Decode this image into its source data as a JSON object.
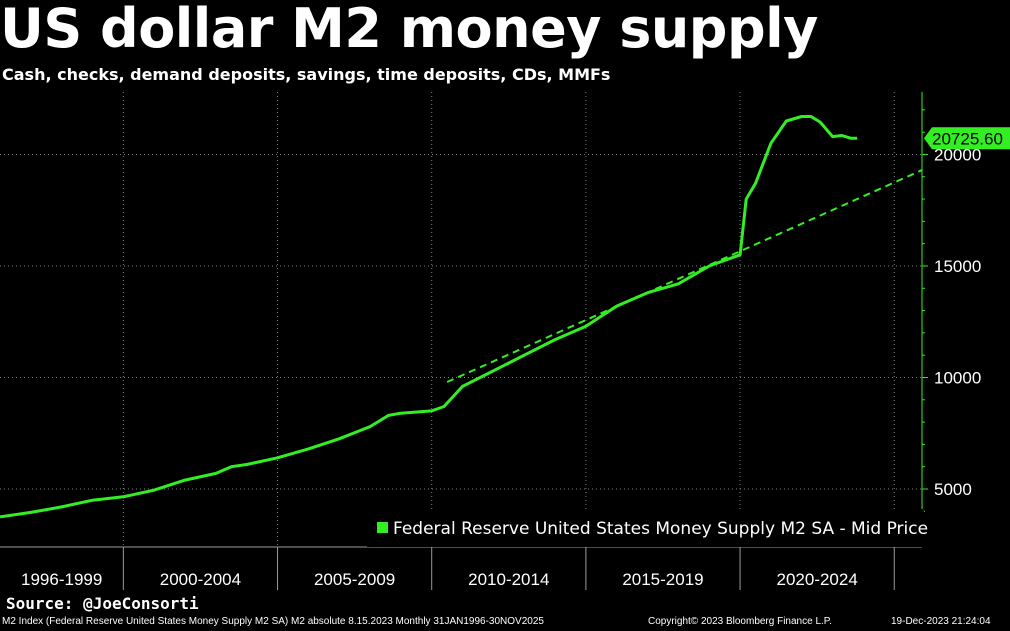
{
  "header": {
    "title": "US dollar M2 money supply",
    "subtitle": "Cash, checks, demand deposits, savings, time deposits, CDs, MMFs"
  },
  "chart_data": {
    "type": "line",
    "title": "US dollar M2 money supply",
    "subtitle": "Cash, checks, demand deposits, savings, time deposits, CDs, MMFs",
    "xlabel": "",
    "ylabel": "",
    "x_range": [
      1996.0,
      2025.9
    ],
    "ylim": [
      2400,
      22800
    ],
    "y_ticks": [
      5000,
      10000,
      15000,
      20000
    ],
    "y_tick_labels": [
      "5000",
      "10000",
      "15000",
      "20000"
    ],
    "x_period_labels": [
      "1996-1999",
      "2000-2004",
      "2005-2009",
      "2010-2014",
      "2015-2019",
      "2020-2024"
    ],
    "x_period_bounds": [
      1996.0,
      2000.0,
      2005.0,
      2010.0,
      2015.0,
      2020.0,
      2025.0
    ],
    "grid": true,
    "legend_position": "bottom-right",
    "last_value_label": "20725.60",
    "colors": {
      "line": "#33ee22",
      "background": "#000000",
      "grid": "#808080",
      "axis": "#33ee22"
    },
    "series": [
      {
        "name": "Federal Reserve United States Money Supply M2 SA - Mid Price",
        "style": "solid",
        "x": [
          1996.0,
          1997.0,
          1998.0,
          1999.0,
          2000.0,
          2001.0,
          2002.0,
          2003.0,
          2003.5,
          2004.0,
          2005.0,
          2006.0,
          2007.0,
          2008.0,
          2008.6,
          2009.0,
          2010.0,
          2010.4,
          2011.0,
          2012.0,
          2013.0,
          2014.0,
          2015.0,
          2016.0,
          2017.0,
          2018.0,
          2019.0,
          2020.0,
          2020.2,
          2020.5,
          2021.0,
          2021.5,
          2022.0,
          2022.3,
          2022.6,
          2023.0,
          2023.3,
          2023.6,
          2023.8
        ],
        "y": [
          3750,
          3950,
          4200,
          4500,
          4650,
          4950,
          5400,
          5700,
          6000,
          6100,
          6400,
          6800,
          7250,
          7800,
          8300,
          8400,
          8500,
          8700,
          9600,
          10300,
          11000,
          11700,
          12300,
          13200,
          13800,
          14200,
          15000,
          15500,
          18000,
          18700,
          20500,
          21500,
          21700,
          21700,
          21450,
          20800,
          20850,
          20725.6,
          20725.6
        ]
      },
      {
        "name": "trend",
        "style": "dashed",
        "x": [
          2010.5,
          2025.9
        ],
        "y": [
          9800,
          19300
        ]
      }
    ]
  },
  "legend": {
    "label": "Federal Reserve United States Money Supply M2 SA - Mid Price"
  },
  "source_text": "Source: @JoeConsorti",
  "footer": {
    "left": "M2 Index (Federal Reserve United States Money Supply M2 SA) M2 absolute 8.15.2023  Monthly 31JAN1996-30NOV2025",
    "middle": "Copyright© 2023 Bloomberg Finance L.P.",
    "right": "19-Dec-2023 21:24:04"
  }
}
